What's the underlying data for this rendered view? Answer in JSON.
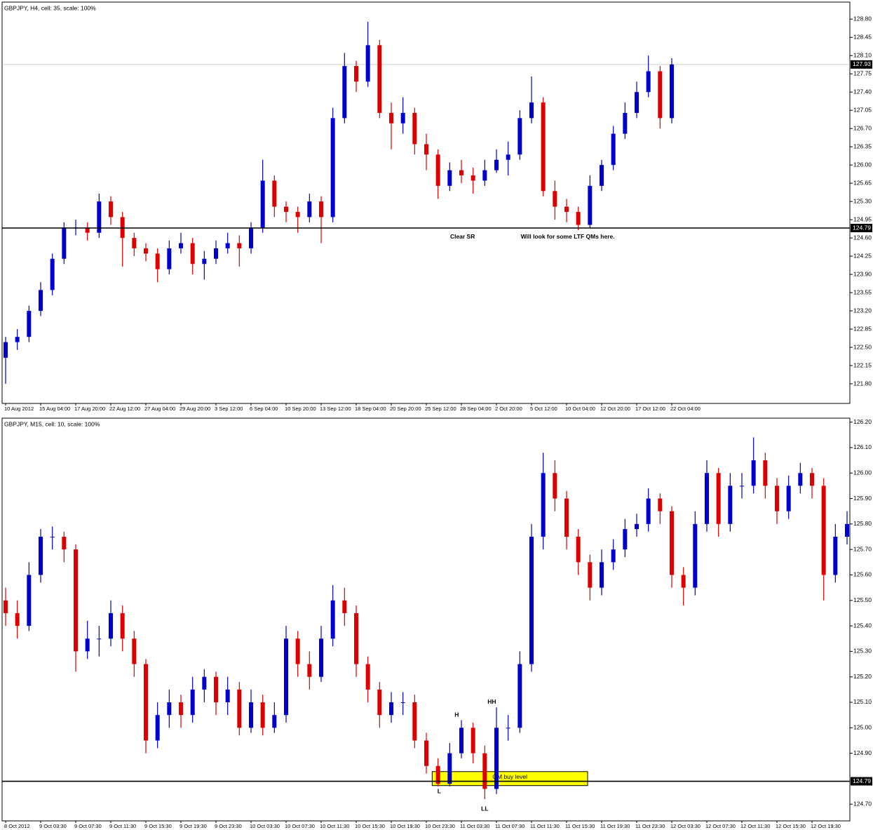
{
  "chart_data": [
    {
      "type": "candlestick",
      "title": "GBPJPY, H4, cell: 35, scale: 100%",
      "up_color": "#0000cc",
      "down_color": "#dd0000",
      "categories": [
        "10 Aug 2012",
        null,
        null,
        "15 Aug 04:00",
        null,
        null,
        "17 Aug 20:00",
        null,
        null,
        "22 Aug 12:00",
        null,
        null,
        "27 Aug 04:00",
        null,
        null,
        "29 Aug 20:00",
        null,
        null,
        "3 Sep 12:00",
        null,
        null,
        "6 Sep 04:00",
        null,
        null,
        "10 Sep 20:00",
        null,
        null,
        "13 Sep 12:00",
        null,
        null,
        "18 Sep 04:00",
        null,
        null,
        "20 Sep 20:00",
        null,
        null,
        "25 Sep 12:00",
        null,
        null,
        "28 Sep 04:00",
        null,
        null,
        "2 Oct 20:00",
        null,
        null,
        "5 Oct 12:00",
        null,
        null,
        "10 Oct 04:00",
        null,
        null,
        "12 Oct 20:00",
        null,
        null,
        "17 Oct 12:00",
        null,
        null,
        "22 Oct 04:00"
      ],
      "open": [
        122.3,
        122.6,
        122.7,
        123.2,
        123.6,
        124.2,
        124.8,
        124.8,
        124.7,
        125.3,
        125.0,
        124.6,
        124.4,
        124.3,
        124.0,
        124.4,
        124.5,
        124.1,
        124.2,
        124.4,
        124.5,
        124.4,
        124.8,
        125.7,
        125.2,
        125.1,
        125.0,
        125.3,
        125.0,
        126.9,
        127.9,
        127.6,
        128.3,
        127.0,
        126.8,
        127.0,
        126.4,
        126.2,
        125.6,
        125.9,
        125.8,
        125.7,
        125.9,
        126.1,
        126.2,
        126.9,
        127.2,
        125.5,
        125.2,
        125.1,
        124.85,
        125.6,
        126.0,
        126.6,
        127.0,
        127.4,
        127.8,
        126.9
      ],
      "high": [
        122.7,
        122.85,
        123.3,
        123.75,
        124.3,
        124.9,
        124.95,
        124.9,
        125.45,
        125.4,
        125.1,
        124.7,
        124.5,
        124.4,
        124.55,
        124.7,
        124.6,
        124.35,
        124.55,
        124.7,
        124.65,
        124.9,
        126.1,
        125.8,
        125.3,
        125.2,
        125.45,
        125.4,
        127.1,
        128.15,
        128.0,
        128.75,
        128.4,
        127.2,
        127.3,
        127.1,
        126.6,
        126.3,
        126.05,
        126.1,
        125.95,
        126.1,
        126.3,
        126.45,
        127.05,
        127.7,
        127.3,
        125.7,
        125.35,
        125.2,
        125.8,
        126.1,
        126.75,
        127.2,
        127.6,
        128.1,
        127.9,
        128.05
      ],
      "low": [
        121.8,
        122.45,
        122.6,
        123.1,
        123.5,
        124.1,
        124.65,
        124.55,
        124.6,
        124.85,
        124.05,
        124.25,
        124.15,
        123.75,
        123.9,
        124.3,
        123.9,
        123.8,
        124.1,
        124.3,
        124.05,
        124.3,
        124.7,
        125.0,
        124.9,
        124.7,
        124.9,
        124.5,
        124.9,
        126.8,
        127.4,
        127.5,
        126.9,
        126.3,
        126.6,
        126.2,
        125.9,
        125.35,
        125.5,
        125.65,
        125.45,
        125.6,
        125.85,
        125.8,
        126.1,
        126.8,
        125.4,
        124.95,
        124.9,
        124.75,
        124.8,
        125.5,
        125.9,
        126.5,
        126.9,
        127.3,
        126.7,
        126.8
      ],
      "close": [
        122.6,
        122.7,
        123.2,
        123.6,
        124.2,
        124.8,
        124.8,
        124.7,
        125.3,
        125.0,
        124.6,
        124.4,
        124.3,
        124.0,
        124.4,
        124.5,
        124.1,
        124.2,
        124.4,
        124.5,
        124.4,
        124.8,
        125.7,
        125.2,
        125.1,
        125.0,
        125.3,
        125.0,
        126.9,
        127.9,
        127.6,
        128.3,
        127.0,
        126.8,
        127.0,
        126.4,
        126.2,
        125.6,
        125.9,
        125.8,
        125.7,
        125.9,
        126.1,
        126.2,
        126.9,
        127.2,
        125.5,
        125.2,
        125.1,
        124.85,
        125.6,
        126.0,
        126.6,
        127.0,
        127.4,
        127.8,
        126.9,
        127.93
      ],
      "ylim": [
        121.45,
        129.1
      ],
      "yticks": [
        {
          "value": 121.8,
          "label": "121.80"
        },
        122.15,
        {
          "value": 122.5,
          "label": "122.50"
        },
        122.85,
        {
          "value": 123.2,
          "label": "123.20"
        },
        123.55,
        {
          "value": 123.9,
          "label": "123.90"
        },
        124.25,
        {
          "value": 124.6,
          "label": "124.60"
        },
        124.95,
        {
          "value": 125.3,
          "label": "125.30"
        },
        125.65,
        {
          "value": 126.0,
          "label": "126.00"
        },
        126.35,
        {
          "value": 126.7,
          "label": "126.70"
        },
        127.05,
        {
          "value": 127.4,
          "label": "127.40"
        },
        127.75,
        {
          "value": 128.1,
          "label": "128.10"
        },
        128.45,
        {
          "value": 128.8,
          "label": "128.80"
        }
      ],
      "hline": 124.79,
      "last_price": 127.93,
      "annotations": [
        {
          "text": "Clear SR",
          "x": 39.1,
          "y": 124.62
        },
        {
          "text": "Will look for some LTF QMs here.",
          "x": 48.1,
          "y": 124.62
        }
      ]
    },
    {
      "type": "candlestick",
      "title": "GBPJPY, M15, cell: 10, scale: 100%",
      "up_color": "#0000cc",
      "down_color": "#dd0000",
      "categories": [
        "8 Oct 2012",
        null,
        null,
        "9 Oct 03:30",
        null,
        null,
        "9 Oct 07:30",
        null,
        null,
        "9 Oct 11:30",
        null,
        null,
        "9 Oct 15:30",
        null,
        null,
        "9 Oct 19:30",
        null,
        null,
        "9 Oct 23:30",
        null,
        null,
        "10 Oct 03:30",
        null,
        null,
        "10 Oct 07:30",
        null,
        null,
        "10 Oct 11:30",
        null,
        null,
        "10 Oct 15:30",
        null,
        null,
        "10 Oct 19:30",
        null,
        null,
        "10 Oct 23:30",
        null,
        null,
        "11 Oct 03:30",
        null,
        null,
        "11 Oct 07:30",
        null,
        null,
        "11 Oct 11:30",
        null,
        null,
        "11 Oct 15:30",
        null,
        null,
        "11 Oct 19:30",
        null,
        null,
        "11 Oct 23:30",
        null,
        null,
        "12 Oct 03:30",
        null,
        null,
        "12 Oct 07:30",
        null,
        null,
        "12 Oct 11:30",
        null,
        null,
        "12 Oct 15:30",
        null,
        null,
        "12 Oct 19:30",
        null,
        null,
        null
      ],
      "open": [
        125.5,
        125.45,
        125.4,
        125.6,
        125.75,
        125.75,
        125.7,
        125.3,
        125.35,
        125.35,
        125.45,
        125.35,
        125.25,
        124.95,
        125.05,
        125.1,
        125.05,
        125.15,
        125.2,
        125.1,
        125.15,
        125.0,
        125.1,
        125.0,
        125.05,
        125.35,
        125.25,
        125.2,
        125.35,
        125.5,
        125.45,
        125.25,
        125.15,
        125.05,
        125.1,
        125.1,
        124.95,
        124.85,
        124.78,
        124.9,
        125.0,
        124.9,
        124.76,
        125.0,
        125.0,
        125.25,
        125.75,
        126.0,
        125.9,
        125.75,
        125.65,
        125.55,
        125.65,
        125.7,
        125.78,
        125.8,
        125.9,
        125.85,
        125.6,
        125.55,
        125.8,
        126.0,
        125.8,
        125.95,
        125.95,
        126.05,
        125.95,
        125.85,
        125.95,
        126.0,
        125.95,
        125.6,
        125.75
      ],
      "high": [
        125.55,
        125.5,
        125.65,
        125.78,
        125.79,
        125.77,
        125.72,
        125.42,
        125.4,
        125.5,
        125.48,
        125.38,
        125.27,
        125.1,
        125.15,
        125.13,
        125.2,
        125.23,
        125.22,
        125.2,
        125.18,
        125.15,
        125.13,
        125.1,
        125.4,
        125.38,
        125.3,
        125.4,
        125.56,
        125.55,
        125.48,
        125.28,
        125.18,
        125.14,
        125.14,
        125.13,
        124.98,
        124.88,
        124.94,
        125.03,
        125.02,
        124.93,
        125.08,
        125.05,
        125.3,
        125.8,
        126.08,
        126.05,
        125.93,
        125.78,
        125.68,
        125.7,
        125.74,
        125.82,
        125.84,
        125.94,
        125.92,
        125.87,
        125.63,
        125.85,
        126.05,
        126.02,
        126.0,
        126.0,
        126.14,
        126.08,
        125.98,
        125.99,
        126.04,
        126.02,
        125.98,
        125.8,
        125.85
      ],
      "low": [
        125.4,
        125.35,
        125.38,
        125.57,
        125.7,
        125.65,
        125.22,
        125.27,
        125.28,
        125.32,
        125.3,
        125.2,
        124.9,
        124.92,
        125.0,
        125.0,
        125.02,
        125.1,
        125.05,
        125.05,
        124.97,
        124.98,
        124.97,
        124.98,
        125.02,
        125.2,
        125.15,
        125.18,
        125.32,
        125.4,
        125.2,
        125.1,
        125.0,
        125.02,
        125.05,
        124.92,
        124.82,
        124.77,
        124.77,
        124.88,
        124.86,
        124.72,
        124.74,
        124.95,
        124.98,
        125.22,
        125.7,
        125.85,
        125.7,
        125.6,
        125.5,
        125.52,
        125.62,
        125.67,
        125.75,
        125.77,
        125.8,
        125.55,
        125.48,
        125.52,
        125.77,
        125.75,
        125.77,
        125.9,
        125.92,
        125.9,
        125.8,
        125.82,
        125.92,
        125.9,
        125.5,
        125.57,
        125.72
      ],
      "close": [
        125.45,
        125.4,
        125.6,
        125.75,
        125.75,
        125.7,
        125.3,
        125.35,
        125.35,
        125.45,
        125.35,
        125.25,
        124.95,
        125.05,
        125.1,
        125.05,
        125.15,
        125.2,
        125.1,
        125.15,
        125.0,
        125.1,
        125.0,
        125.05,
        125.35,
        125.25,
        125.2,
        125.35,
        125.5,
        125.45,
        125.25,
        125.15,
        125.05,
        125.1,
        125.1,
        124.95,
        124.85,
        124.78,
        124.9,
        125.0,
        124.9,
        124.76,
        125.0,
        125.0,
        125.25,
        125.75,
        126.0,
        125.9,
        125.75,
        125.65,
        125.55,
        125.65,
        125.7,
        125.78,
        125.8,
        125.9,
        125.85,
        125.6,
        125.55,
        125.8,
        126.0,
        125.8,
        125.95,
        125.95,
        126.05,
        125.95,
        125.85,
        125.95,
        126.0,
        125.95,
        125.6,
        125.75,
        125.8
      ],
      "ylim": [
        124.64,
        126.21
      ],
      "yticks": [
        {
          "value": 124.7,
          "label": "124.70"
        },
        {
          "value": 124.9,
          "label": "124.90"
        },
        {
          "value": 125.0,
          "label": "125.00"
        },
        {
          "value": 125.1,
          "label": "125.10"
        },
        {
          "value": 125.2,
          "label": "125.20"
        },
        {
          "value": 125.3,
          "label": "125.30"
        },
        {
          "value": 125.4,
          "label": "125.40"
        },
        {
          "value": 125.5,
          "label": "125.50"
        },
        {
          "value": 125.6,
          "label": "125.60"
        },
        {
          "value": 125.7,
          "label": "125.70"
        },
        {
          "value": 125.8,
          "label": "125.80"
        },
        {
          "value": 125.9,
          "label": "125.90"
        },
        {
          "value": 126.0,
          "label": "126.00"
        },
        {
          "value": 126.1,
          "label": "126.10"
        },
        {
          "value": 126.2,
          "label": "126.20"
        }
      ],
      "hline": 124.79,
      "zone": {
        "label": "QM buy level",
        "x": [
          36.5,
          49.8
        ],
        "ylim": [
          124.773,
          124.828
        ],
        "color": "#ffff00"
      },
      "annotations": [
        {
          "text": "H",
          "x": 38.6,
          "y": 125.05
        },
        {
          "text": "HH",
          "x": 41.6,
          "y": 125.1
        },
        {
          "text": "L",
          "x": 37.1,
          "y": 124.75
        },
        {
          "text": "LL",
          "x": 41,
          "y": 124.68
        }
      ]
    }
  ]
}
